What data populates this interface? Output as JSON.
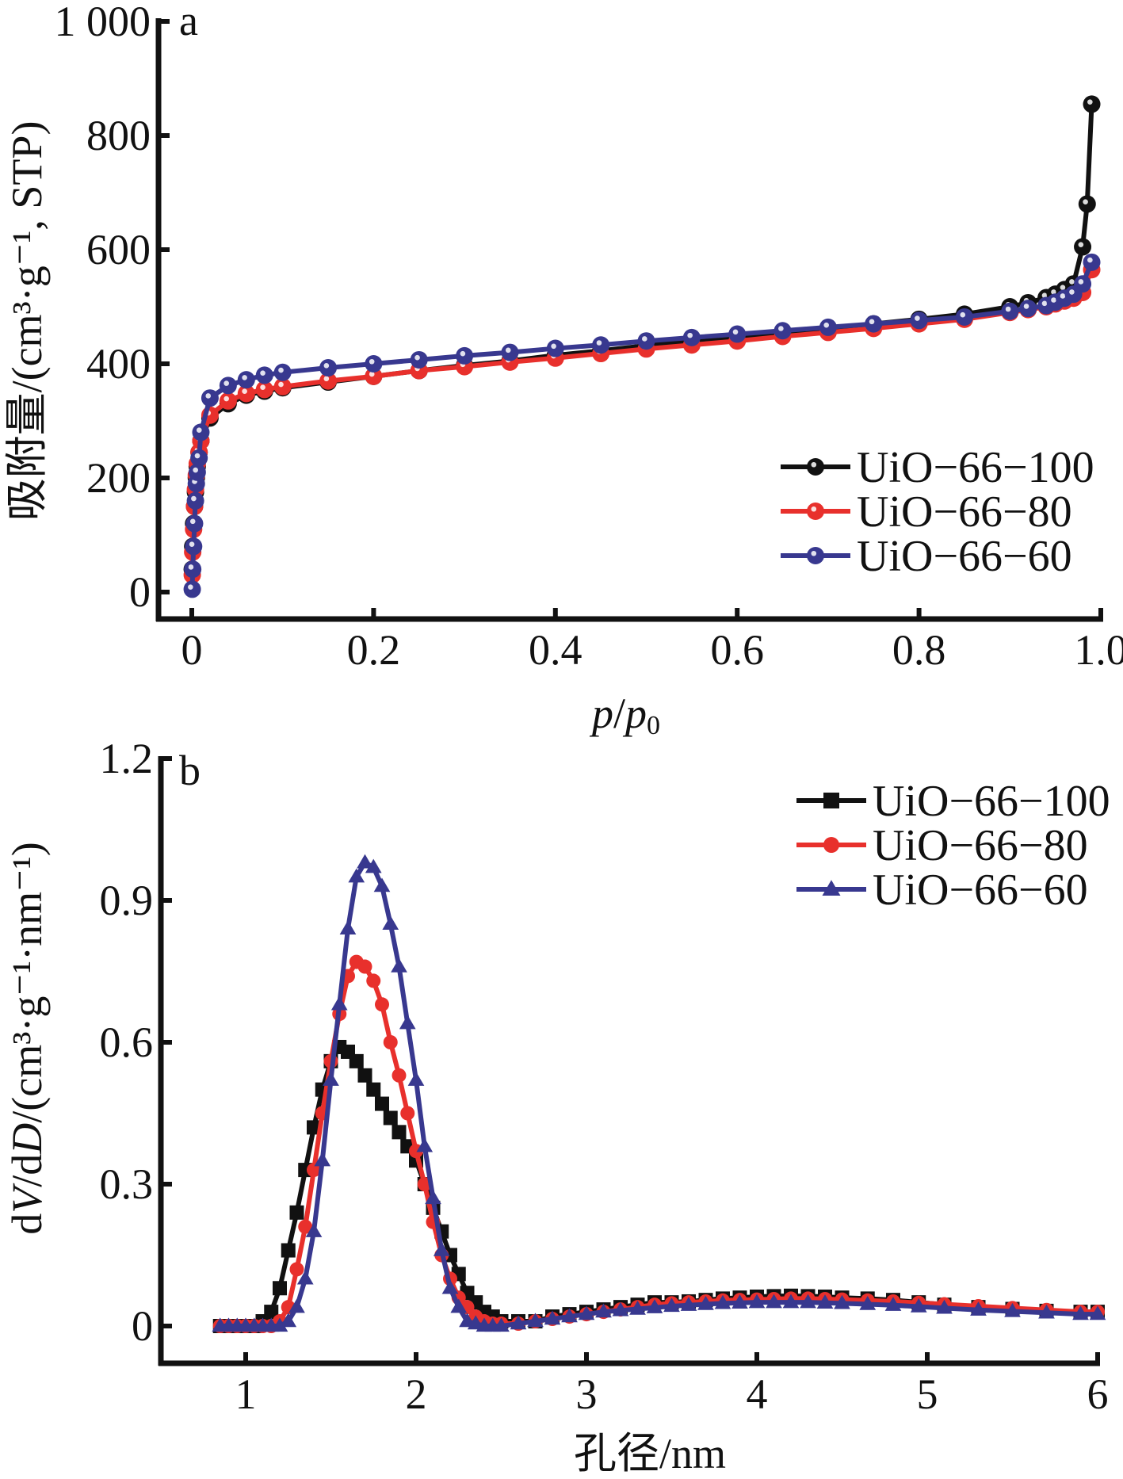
{
  "chart_data": [
    {
      "panel": "a",
      "type": "line",
      "title": "",
      "xlabel_italic": "p",
      "xlabel_sep": "/",
      "xlabel_italic2": "p",
      "xlabel_sub": "0",
      "ylabel": "吸附量/(cm³·g⁻¹, STP)",
      "xlim": [
        0,
        1.0
      ],
      "ylim": [
        0,
        1000
      ],
      "xticks": [
        0,
        0.2,
        0.4,
        0.6,
        0.8,
        1.0
      ],
      "xtick_labels": [
        "0",
        "0.2",
        "0.4",
        "0.6",
        "0.8",
        "1.0"
      ],
      "yticks": [
        0,
        200,
        400,
        600,
        800,
        1000
      ],
      "ytick_labels": [
        "0",
        "200",
        "400",
        "600",
        "800",
        "1 000"
      ],
      "grid": false,
      "legend_position": "right",
      "marker": "circle",
      "series": [
        {
          "name": "UiO-66-100",
          "color": "#111111",
          "x": [
            0.0005,
            0.001,
            0.002,
            0.003,
            0.004,
            0.005,
            0.006,
            0.008,
            0.01,
            0.02,
            0.04,
            0.06,
            0.08,
            0.1,
            0.15,
            0.2,
            0.25,
            0.3,
            0.35,
            0.4,
            0.45,
            0.5,
            0.55,
            0.6,
            0.65,
            0.7,
            0.75,
            0.8,
            0.85,
            0.9,
            0.92,
            0.94,
            0.95,
            0.96,
            0.97,
            0.98,
            0.985,
            0.99
          ],
          "y": [
            40,
            80,
            120,
            150,
            175,
            200,
            220,
            245,
            265,
            305,
            330,
            345,
            352,
            358,
            368,
            378,
            388,
            397,
            405,
            415,
            423,
            432,
            440,
            448,
            455,
            462,
            470,
            478,
            487,
            500,
            507,
            516,
            522,
            530,
            540,
            605,
            680,
            855
          ]
        },
        {
          "name": "UiO-66-80",
          "color": "#e8302c",
          "x": [
            0.0005,
            0.001,
            0.002,
            0.003,
            0.004,
            0.005,
            0.006,
            0.008,
            0.01,
            0.02,
            0.04,
            0.06,
            0.08,
            0.1,
            0.15,
            0.2,
            0.25,
            0.3,
            0.35,
            0.4,
            0.45,
            0.5,
            0.55,
            0.6,
            0.65,
            0.7,
            0.75,
            0.8,
            0.85,
            0.9,
            0.92,
            0.94,
            0.95,
            0.96,
            0.97,
            0.98,
            0.99
          ],
          "y": [
            30,
            70,
            110,
            150,
            180,
            205,
            225,
            245,
            265,
            310,
            335,
            348,
            355,
            360,
            370,
            378,
            388,
            395,
            403,
            410,
            418,
            426,
            433,
            440,
            448,
            455,
            462,
            470,
            478,
            490,
            495,
            500,
            505,
            510,
            515,
            525,
            565
          ]
        },
        {
          "name": "UiO-66-60",
          "color": "#38388f",
          "x": [
            0.0005,
            0.001,
            0.002,
            0.003,
            0.004,
            0.005,
            0.006,
            0.008,
            0.01,
            0.02,
            0.04,
            0.06,
            0.08,
            0.1,
            0.15,
            0.2,
            0.25,
            0.3,
            0.35,
            0.4,
            0.45,
            0.5,
            0.55,
            0.6,
            0.65,
            0.7,
            0.75,
            0.8,
            0.85,
            0.9,
            0.92,
            0.94,
            0.95,
            0.96,
            0.97,
            0.98,
            0.99
          ],
          "y": [
            5,
            40,
            80,
            120,
            160,
            190,
            210,
            235,
            280,
            340,
            362,
            372,
            380,
            385,
            393,
            400,
            407,
            414,
            420,
            427,
            433,
            440,
            446,
            452,
            458,
            464,
            470,
            476,
            482,
            492,
            497,
            502,
            508,
            515,
            522,
            540,
            578
          ]
        }
      ]
    },
    {
      "panel": "b",
      "type": "line",
      "title": "",
      "xlabel": "孔径/nm",
      "ylabel_prefix": "d",
      "ylabel_italic": "V",
      "ylabel_mid": "/d",
      "ylabel_italic2": "D",
      "ylabel_suffix": "/(cm³·g⁻¹·nm⁻¹)",
      "xlim": [
        0.55,
        6.0
      ],
      "ylim": [
        -0.09,
        1.2
      ],
      "xticks": [
        1,
        2,
        3,
        4,
        5,
        6
      ],
      "xtick_labels": [
        "1",
        "2",
        "3",
        "4",
        "5",
        "6"
      ],
      "yticks": [
        0,
        0.3,
        0.6,
        0.9,
        1.2
      ],
      "ytick_labels": [
        "0",
        "0.3",
        "0.6",
        "0.9",
        "1.2"
      ],
      "grid": false,
      "legend_position": "top-right",
      "series": [
        {
          "name": "UiO-66-100",
          "color": "#111111",
          "marker": "square",
          "x": [
            0.85,
            0.9,
            0.95,
            1.0,
            1.05,
            1.1,
            1.15,
            1.2,
            1.25,
            1.3,
            1.35,
            1.4,
            1.45,
            1.5,
            1.55,
            1.6,
            1.65,
            1.7,
            1.75,
            1.8,
            1.85,
            1.9,
            1.95,
            2.0,
            2.05,
            2.1,
            2.15,
            2.2,
            2.25,
            2.3,
            2.35,
            2.4,
            2.45,
            2.5,
            2.6,
            2.7,
            2.8,
            2.9,
            3.0,
            3.1,
            3.2,
            3.3,
            3.4,
            3.5,
            3.6,
            3.7,
            3.8,
            3.9,
            4.0,
            4.1,
            4.2,
            4.3,
            4.4,
            4.5,
            4.65,
            4.8,
            4.95,
            5.1,
            5.3,
            5.5,
            5.7,
            5.9,
            6.0
          ],
          "y": [
            0,
            0,
            0,
            0,
            0,
            0.01,
            0.03,
            0.08,
            0.16,
            0.24,
            0.33,
            0.42,
            0.5,
            0.56,
            0.59,
            0.58,
            0.56,
            0.53,
            0.5,
            0.47,
            0.44,
            0.41,
            0.38,
            0.35,
            0.3,
            0.25,
            0.2,
            0.15,
            0.11,
            0.07,
            0.05,
            0.03,
            0.02,
            0.01,
            0.01,
            0.01,
            0.02,
            0.025,
            0.03,
            0.035,
            0.04,
            0.045,
            0.05,
            0.05,
            0.052,
            0.055,
            0.058,
            0.06,
            0.062,
            0.063,
            0.064,
            0.063,
            0.062,
            0.06,
            0.058,
            0.055,
            0.05,
            0.045,
            0.04,
            0.036,
            0.032,
            0.03,
            0.03
          ]
        },
        {
          "name": "UiO-66-80",
          "color": "#e8302c",
          "marker": "circle",
          "x": [
            0.85,
            0.9,
            0.95,
            1.0,
            1.05,
            1.1,
            1.15,
            1.2,
            1.25,
            1.3,
            1.35,
            1.4,
            1.45,
            1.5,
            1.55,
            1.6,
            1.65,
            1.7,
            1.75,
            1.8,
            1.85,
            1.9,
            1.95,
            2.0,
            2.05,
            2.1,
            2.15,
            2.2,
            2.25,
            2.3,
            2.35,
            2.4,
            2.45,
            2.5,
            2.6,
            2.7,
            2.8,
            2.9,
            3.0,
            3.1,
            3.2,
            3.3,
            3.4,
            3.5,
            3.6,
            3.7,
            3.8,
            3.9,
            4.0,
            4.1,
            4.2,
            4.3,
            4.4,
            4.5,
            4.65,
            4.8,
            4.95,
            5.1,
            5.3,
            5.5,
            5.7,
            5.9,
            6.0
          ],
          "y": [
            0,
            0,
            0,
            0,
            0,
            0,
            0,
            0.01,
            0.04,
            0.12,
            0.21,
            0.33,
            0.45,
            0.56,
            0.66,
            0.74,
            0.77,
            0.76,
            0.73,
            0.68,
            0.6,
            0.53,
            0.45,
            0.37,
            0.3,
            0.22,
            0.15,
            0.1,
            0.06,
            0.04,
            0.02,
            0.01,
            0.005,
            0.005,
            0.005,
            0.01,
            0.015,
            0.02,
            0.025,
            0.03,
            0.035,
            0.04,
            0.045,
            0.048,
            0.05,
            0.052,
            0.054,
            0.055,
            0.056,
            0.057,
            0.058,
            0.058,
            0.057,
            0.056,
            0.054,
            0.052,
            0.049,
            0.046,
            0.042,
            0.038,
            0.034,
            0.03,
            0.03
          ]
        },
        {
          "name": "UiO-66-60",
          "color": "#38388f",
          "marker": "triangle",
          "x": [
            0.85,
            0.9,
            0.95,
            1.0,
            1.05,
            1.1,
            1.15,
            1.2,
            1.25,
            1.3,
            1.35,
            1.4,
            1.45,
            1.5,
            1.55,
            1.6,
            1.65,
            1.7,
            1.75,
            1.8,
            1.85,
            1.9,
            1.95,
            2.0,
            2.05,
            2.1,
            2.15,
            2.2,
            2.25,
            2.3,
            2.35,
            2.4,
            2.45,
            2.5,
            2.6,
            2.7,
            2.8,
            2.9,
            3.0,
            3.1,
            3.2,
            3.3,
            3.4,
            3.5,
            3.6,
            3.7,
            3.8,
            3.9,
            4.0,
            4.1,
            4.2,
            4.3,
            4.4,
            4.5,
            4.65,
            4.8,
            4.95,
            5.1,
            5.3,
            5.5,
            5.7,
            5.9,
            6.0
          ],
          "y": [
            0,
            0,
            0,
            0,
            0,
            0,
            0,
            0,
            0.01,
            0.04,
            0.1,
            0.2,
            0.35,
            0.52,
            0.68,
            0.84,
            0.95,
            0.98,
            0.97,
            0.93,
            0.85,
            0.76,
            0.64,
            0.52,
            0.38,
            0.27,
            0.16,
            0.08,
            0.04,
            0.01,
            0.005,
            0.0,
            0.0,
            0.0,
            0.005,
            0.01,
            0.015,
            0.02,
            0.025,
            0.03,
            0.033,
            0.036,
            0.039,
            0.042,
            0.044,
            0.046,
            0.048,
            0.049,
            0.05,
            0.05,
            0.05,
            0.05,
            0.049,
            0.048,
            0.046,
            0.044,
            0.041,
            0.038,
            0.034,
            0.031,
            0.028,
            0.025,
            0.025
          ]
        }
      ]
    }
  ]
}
